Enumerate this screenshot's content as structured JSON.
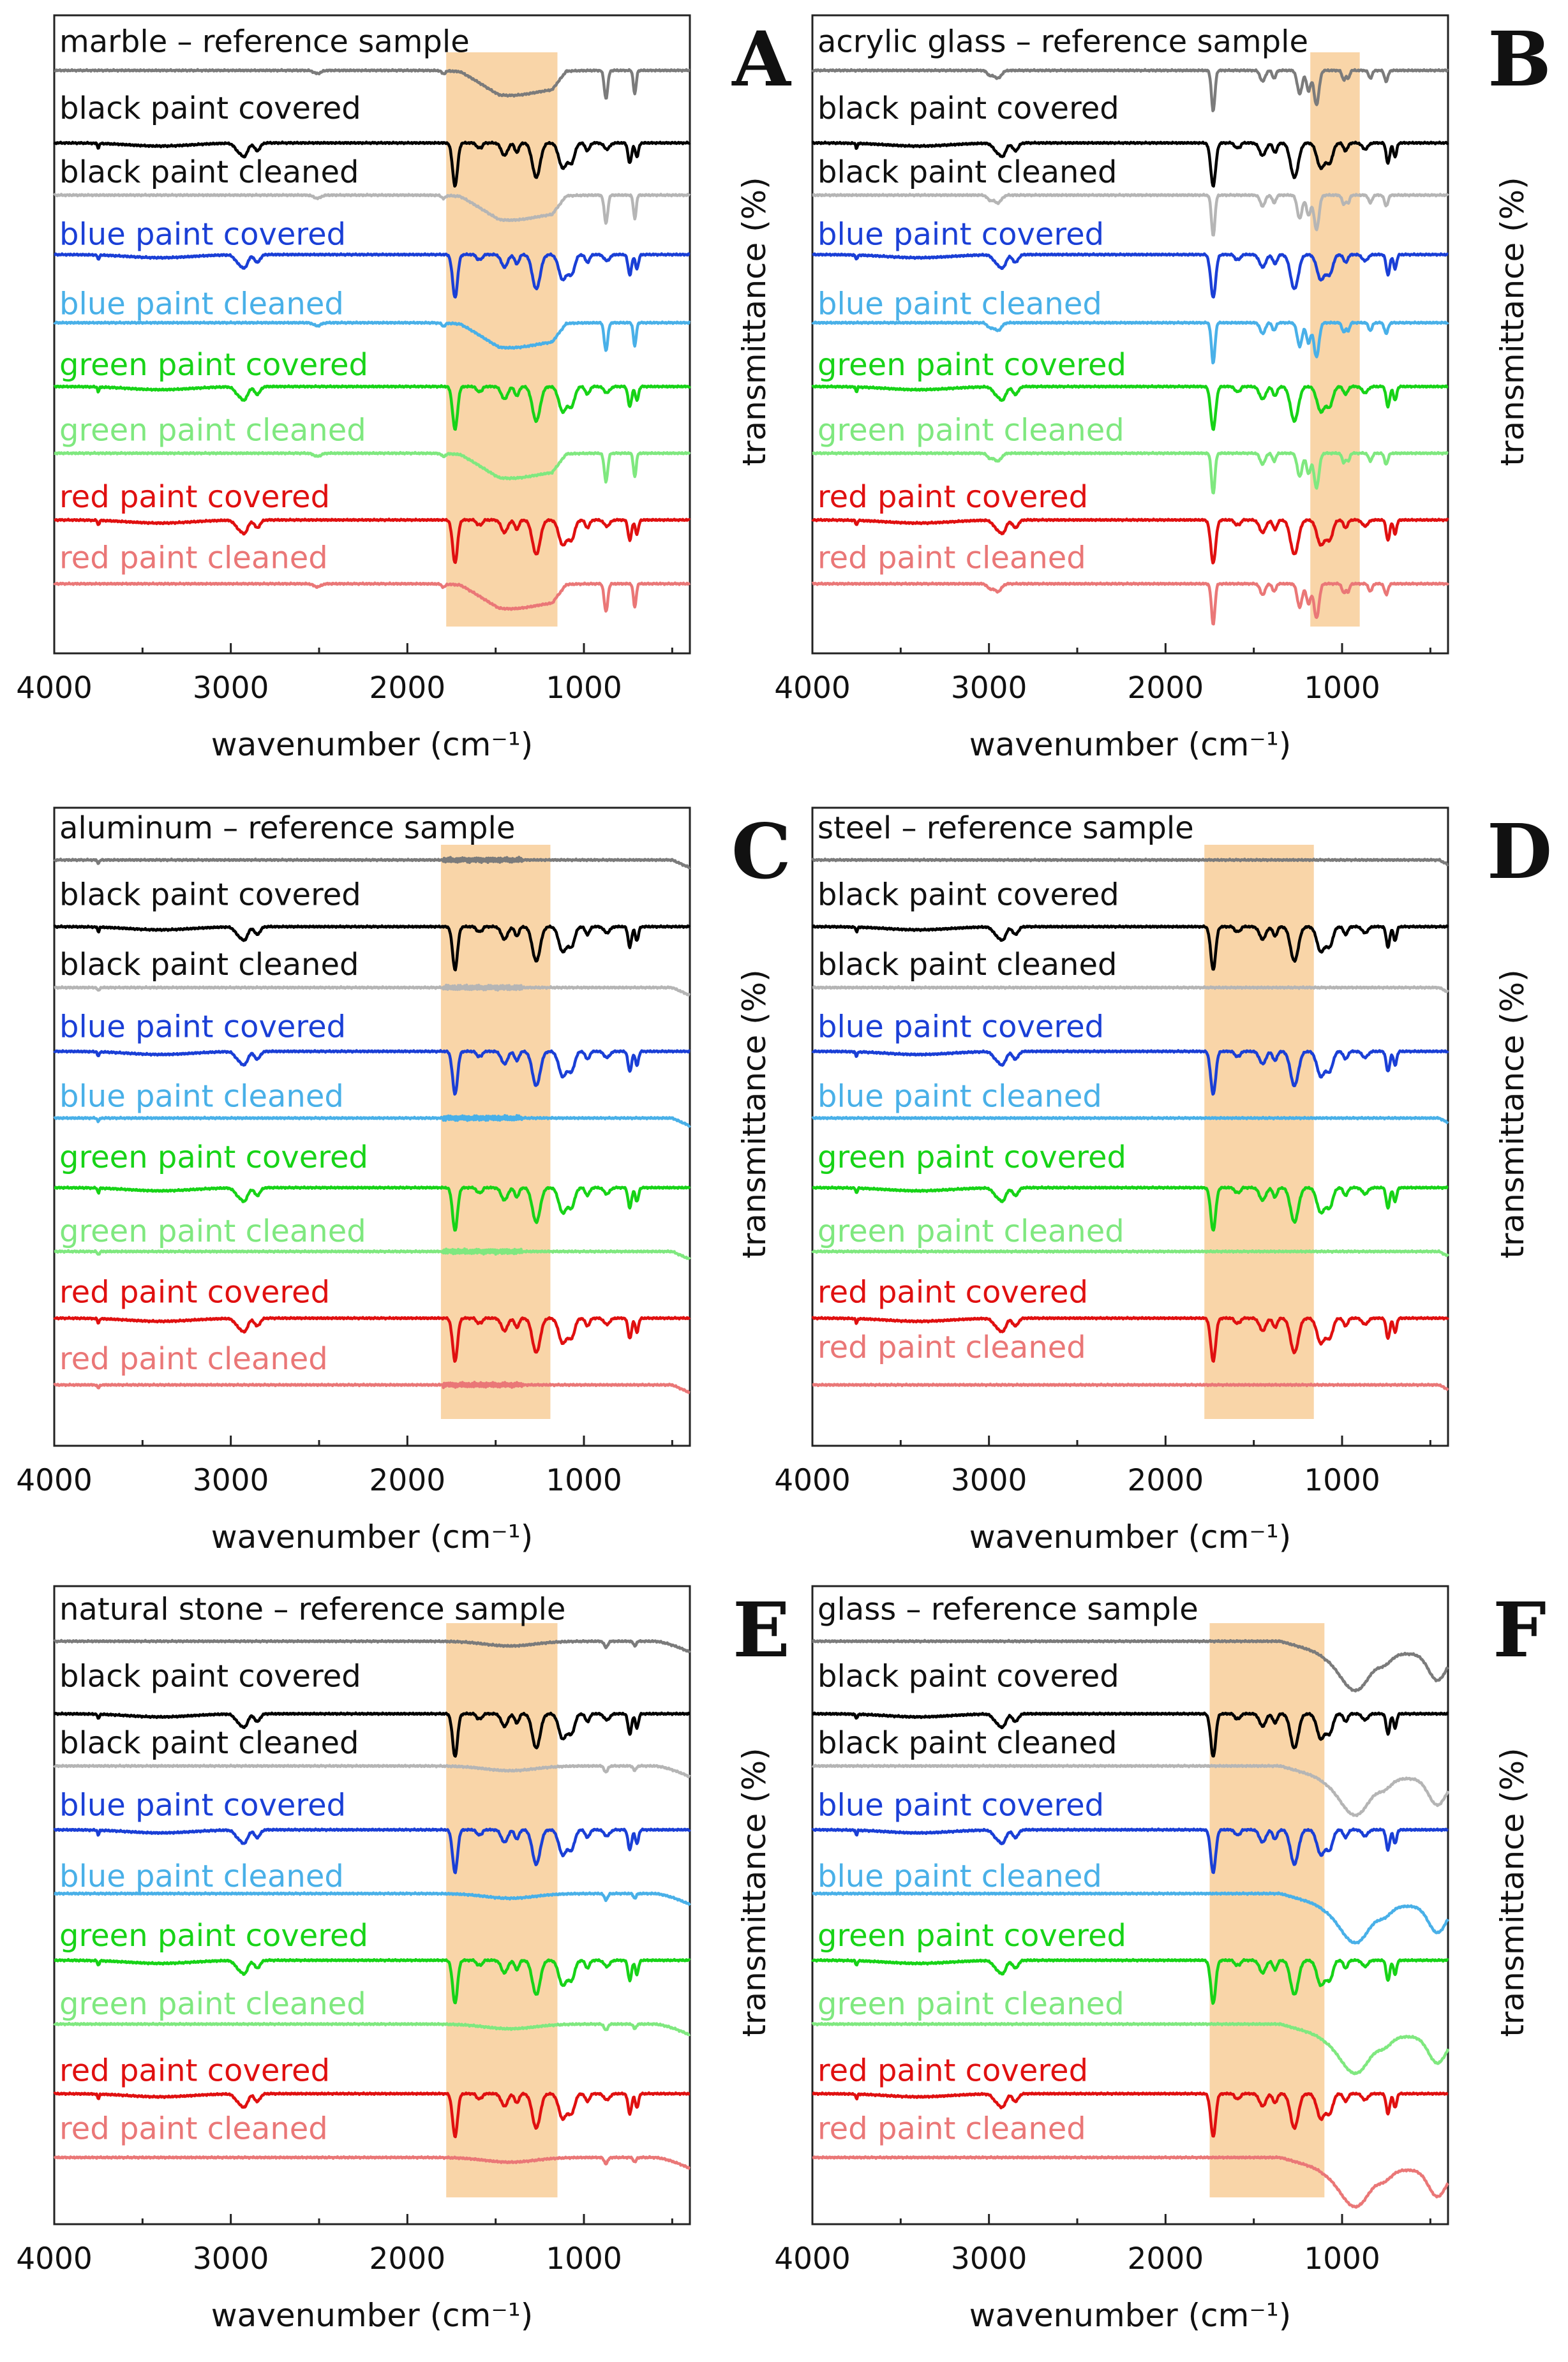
{
  "figure": {
    "xlabel": "wavenumber (cm⁻¹)",
    "ylabel": "transmittance (%)"
  },
  "chart_data": [
    {
      "panel": "A",
      "substrate": "marble",
      "type": "line",
      "x_range": [
        4000,
        400
      ],
      "x_ticks": [
        4000,
        3000,
        2000,
        1000
      ],
      "xlabel": "wavenumber (cm⁻¹)",
      "ylabel": "transmittance (%)",
      "highlight_range_cm1": [
        1780,
        1150
      ],
      "baseline_profile": "carbonate",
      "series": [
        {
          "label": "marble – reference sample",
          "color": "#7b7b7b",
          "kind": "substrate"
        },
        {
          "label": "black paint covered",
          "color": "#000000",
          "kind": "paint"
        },
        {
          "label": "black paint cleaned",
          "color": "#b5b5b5",
          "kind": "substrate"
        },
        {
          "label": "blue paint covered",
          "color": "#1a3fd6",
          "kind": "paint"
        },
        {
          "label": "blue paint cleaned",
          "color": "#49b0e8",
          "kind": "substrate"
        },
        {
          "label": "green paint covered",
          "color": "#17d317",
          "kind": "paint"
        },
        {
          "label": "green paint cleaned",
          "color": "#7fe87f",
          "kind": "substrate"
        },
        {
          "label": "red paint covered",
          "color": "#e01010",
          "kind": "paint"
        },
        {
          "label": "red paint cleaned",
          "color": "#ea7777",
          "kind": "substrate"
        }
      ]
    },
    {
      "panel": "B",
      "substrate": "acrylic glass",
      "type": "line",
      "x_range": [
        4000,
        400
      ],
      "x_ticks": [
        4000,
        3000,
        2000,
        1000
      ],
      "xlabel": "wavenumber (cm⁻¹)",
      "ylabel": "transmittance (%)",
      "highlight_range_cm1": [
        1180,
        900
      ],
      "baseline_profile": "acrylic",
      "series": [
        {
          "label": "acrylic glass – reference sample",
          "color": "#7b7b7b",
          "kind": "substrate"
        },
        {
          "label": "black paint covered",
          "color": "#000000",
          "kind": "paint"
        },
        {
          "label": "black paint cleaned",
          "color": "#b5b5b5",
          "kind": "substrate"
        },
        {
          "label": "blue paint covered",
          "color": "#1a3fd6",
          "kind": "paint"
        },
        {
          "label": "blue paint cleaned",
          "color": "#49b0e8",
          "kind": "substrate"
        },
        {
          "label": "green paint covered",
          "color": "#17d317",
          "kind": "paint"
        },
        {
          "label": "green paint cleaned",
          "color": "#7fe87f",
          "kind": "substrate"
        },
        {
          "label": "red paint covered",
          "color": "#e01010",
          "kind": "paint"
        },
        {
          "label": "red paint cleaned",
          "color": "#ea7777",
          "kind": "substrate"
        }
      ]
    },
    {
      "panel": "C",
      "substrate": "aluminum",
      "type": "line",
      "x_range": [
        4000,
        400
      ],
      "x_ticks": [
        4000,
        3000,
        2000,
        1000
      ],
      "xlabel": "wavenumber (cm⁻¹)",
      "ylabel": "transmittance (%)",
      "highlight_range_cm1": [
        1810,
        1190
      ],
      "baseline_profile": "metal",
      "series": [
        {
          "label": "aluminum – reference sample",
          "color": "#7b7b7b",
          "kind": "substrate"
        },
        {
          "label": "black paint covered",
          "color": "#000000",
          "kind": "paint"
        },
        {
          "label": "black paint cleaned",
          "color": "#b5b5b5",
          "kind": "substrate"
        },
        {
          "label": "blue paint covered",
          "color": "#1a3fd6",
          "kind": "paint"
        },
        {
          "label": "blue paint cleaned",
          "color": "#49b0e8",
          "kind": "substrate"
        },
        {
          "label": "green paint covered",
          "color": "#17d317",
          "kind": "paint"
        },
        {
          "label": "green paint cleaned",
          "color": "#7fe87f",
          "kind": "substrate"
        },
        {
          "label": "red paint covered",
          "color": "#e01010",
          "kind": "paint"
        },
        {
          "label": "red paint cleaned",
          "color": "#ea7777",
          "kind": "substrate"
        }
      ]
    },
    {
      "panel": "D",
      "substrate": "steel",
      "type": "line",
      "x_range": [
        4000,
        400
      ],
      "x_ticks": [
        4000,
        3000,
        2000,
        1000
      ],
      "xlabel": "wavenumber (cm⁻¹)",
      "ylabel": "transmittance (%)",
      "highlight_range_cm1": [
        1780,
        1160
      ],
      "baseline_profile": "flat",
      "series": [
        {
          "label": "steel – reference sample",
          "color": "#7b7b7b",
          "kind": "substrate"
        },
        {
          "label": "black paint covered",
          "color": "#000000",
          "kind": "paint"
        },
        {
          "label": "black paint cleaned",
          "color": "#b5b5b5",
          "kind": "substrate"
        },
        {
          "label": "blue paint covered",
          "color": "#1a3fd6",
          "kind": "paint"
        },
        {
          "label": "blue paint cleaned",
          "color": "#49b0e8",
          "kind": "substrate"
        },
        {
          "label": "green paint covered",
          "color": "#17d317",
          "kind": "paint"
        },
        {
          "label": "green paint cleaned",
          "color": "#7fe87f",
          "kind": "substrate"
        },
        {
          "label": "red paint covered",
          "color": "#e01010",
          "kind": "paint"
        },
        {
          "label": "red paint cleaned",
          "color": "#ea7777",
          "kind": "substrate"
        }
      ]
    },
    {
      "panel": "E",
      "substrate": "natural stone",
      "type": "line",
      "x_range": [
        4000,
        400
      ],
      "x_ticks": [
        4000,
        3000,
        2000,
        1000
      ],
      "xlabel": "wavenumber (cm⁻¹)",
      "ylabel": "transmittance (%)",
      "highlight_range_cm1": [
        1780,
        1150
      ],
      "baseline_profile": "stone",
      "series": [
        {
          "label": "natural stone – reference sample",
          "color": "#7b7b7b",
          "kind": "substrate"
        },
        {
          "label": "black paint covered",
          "color": "#000000",
          "kind": "paint"
        },
        {
          "label": "black paint cleaned",
          "color": "#b5b5b5",
          "kind": "substrate"
        },
        {
          "label": "blue paint covered",
          "color": "#1a3fd6",
          "kind": "paint"
        },
        {
          "label": "blue paint cleaned",
          "color": "#49b0e8",
          "kind": "substrate"
        },
        {
          "label": "green paint covered",
          "color": "#17d317",
          "kind": "paint"
        },
        {
          "label": "green paint cleaned",
          "color": "#7fe87f",
          "kind": "substrate"
        },
        {
          "label": "red paint covered",
          "color": "#e01010",
          "kind": "paint"
        },
        {
          "label": "red paint cleaned",
          "color": "#ea7777",
          "kind": "substrate"
        }
      ]
    },
    {
      "panel": "F",
      "substrate": "glass",
      "type": "line",
      "x_range": [
        4000,
        400
      ],
      "x_ticks": [
        4000,
        3000,
        2000,
        1000
      ],
      "xlabel": "wavenumber (cm⁻¹)",
      "ylabel": "transmittance (%)",
      "highlight_range_cm1": [
        1750,
        1100
      ],
      "baseline_profile": "glass",
      "series": [
        {
          "label": "glass – reference sample",
          "color": "#7b7b7b",
          "kind": "substrate"
        },
        {
          "label": "black paint covered",
          "color": "#000000",
          "kind": "paint"
        },
        {
          "label": "black paint cleaned",
          "color": "#b5b5b5",
          "kind": "substrate"
        },
        {
          "label": "blue paint covered",
          "color": "#1a3fd6",
          "kind": "paint"
        },
        {
          "label": "blue paint cleaned",
          "color": "#49b0e8",
          "kind": "substrate"
        },
        {
          "label": "green paint covered",
          "color": "#17d317",
          "kind": "paint"
        },
        {
          "label": "green paint cleaned",
          "color": "#7fe87f",
          "kind": "substrate"
        },
        {
          "label": "red paint covered",
          "color": "#e01010",
          "kind": "paint"
        },
        {
          "label": "red paint cleaned",
          "color": "#ea7777",
          "kind": "substrate"
        }
      ]
    }
  ]
}
